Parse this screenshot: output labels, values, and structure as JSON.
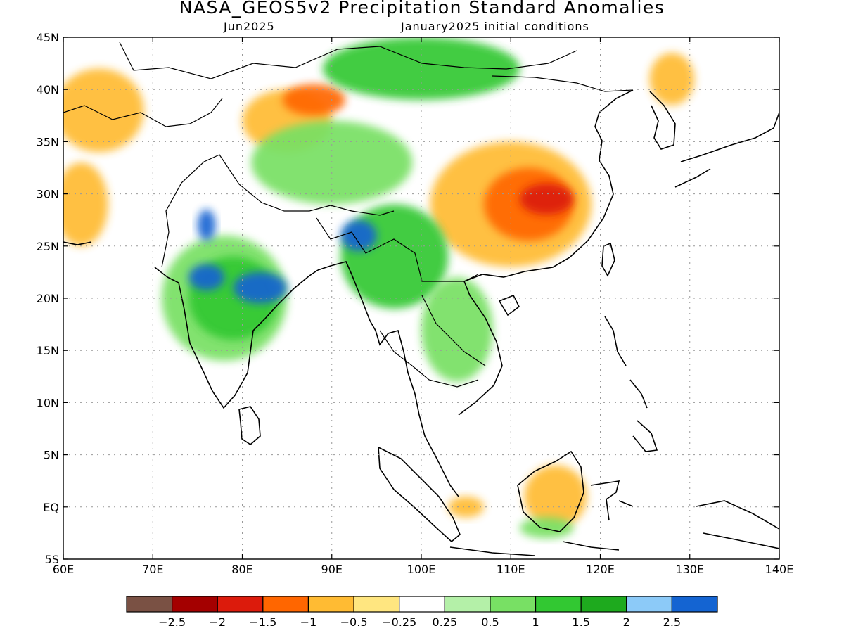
{
  "title": "NASA_GEOS5v2 Precipitation Standard Anomalies",
  "valid_month": "Jun2025",
  "initial_conditions": "January2025 initial conditions",
  "map": {
    "lon_range": [
      60,
      140
    ],
    "lat_range": [
      -5,
      45
    ],
    "lon_ticks": [
      "60E",
      "70E",
      "80E",
      "90E",
      "100E",
      "110E",
      "120E",
      "130E",
      "140E"
    ],
    "lat_ticks": [
      "5S",
      "EQ",
      "5N",
      "10N",
      "15N",
      "20N",
      "25N",
      "30N",
      "35N",
      "40N",
      "45N"
    ],
    "gridlines": true
  },
  "colorbar": {
    "colors": [
      "#7a5144",
      "#a40000",
      "#dc1b0c",
      "#ff6600",
      "#ffbb33",
      "#ffe680",
      "#ffffff",
      "#b4f0a8",
      "#78e064",
      "#32c832",
      "#1eaa1e",
      "#8ccaf8",
      "#1464d2"
    ],
    "labels": [
      "−2.5",
      "−2",
      "−1.5",
      "−1",
      "−0.5",
      "−0.25",
      "0.25",
      "0.5",
      "1",
      "1.5",
      "2",
      "2.5"
    ]
  },
  "anomaly_regions": [
    {
      "lon": 85,
      "lat": 37,
      "w": 10,
      "h": 6,
      "color": "#ffbb33"
    },
    {
      "lon": 88,
      "lat": 39,
      "w": 7,
      "h": 3,
      "color": "#ff6600"
    },
    {
      "lon": 64,
      "lat": 38,
      "w": 10,
      "h": 8,
      "color": "#ffbb33"
    },
    {
      "lon": 62,
      "lat": 29,
      "w": 6,
      "h": 8,
      "color": "#ffbb33"
    },
    {
      "lon": 110,
      "lat": 29,
      "w": 18,
      "h": 12,
      "color": "#ffbb33"
    },
    {
      "lon": 112,
      "lat": 29,
      "w": 10,
      "h": 7,
      "color": "#ff6600"
    },
    {
      "lon": 114,
      "lat": 29.5,
      "w": 6,
      "h": 3,
      "color": "#dc1b0c"
    },
    {
      "lon": 128,
      "lat": 41,
      "w": 5,
      "h": 5,
      "color": "#ffbb33"
    },
    {
      "lon": 115,
      "lat": 1,
      "w": 7,
      "h": 6,
      "color": "#ffbb33"
    },
    {
      "lon": 105,
      "lat": 0,
      "w": 4,
      "h": 2,
      "color": "#ffbb33"
    },
    {
      "lon": 78,
      "lat": 20,
      "w": 14,
      "h": 12,
      "color": "#78e064"
    },
    {
      "lon": 79,
      "lat": 20,
      "w": 10,
      "h": 8,
      "color": "#32c832"
    },
    {
      "lon": 90,
      "lat": 33,
      "w": 18,
      "h": 8,
      "color": "#78e064"
    },
    {
      "lon": 97,
      "lat": 24,
      "w": 12,
      "h": 10,
      "color": "#32c832"
    },
    {
      "lon": 104,
      "lat": 17,
      "w": 8,
      "h": 10,
      "color": "#78e064"
    },
    {
      "lon": 100,
      "lat": 42,
      "w": 22,
      "h": 6,
      "color": "#32c832"
    },
    {
      "lon": 82,
      "lat": 21,
      "w": 6,
      "h": 3,
      "color": "#1464d2"
    },
    {
      "lon": 76,
      "lat": 22,
      "w": 4,
      "h": 2.5,
      "color": "#1464d2"
    },
    {
      "lon": 93,
      "lat": 26,
      "w": 4,
      "h": 3,
      "color": "#1464d2"
    },
    {
      "lon": 76,
      "lat": 27,
      "w": 2,
      "h": 3,
      "color": "#1464d2"
    },
    {
      "lon": 114,
      "lat": -2,
      "w": 6,
      "h": 2,
      "color": "#78e064"
    }
  ]
}
